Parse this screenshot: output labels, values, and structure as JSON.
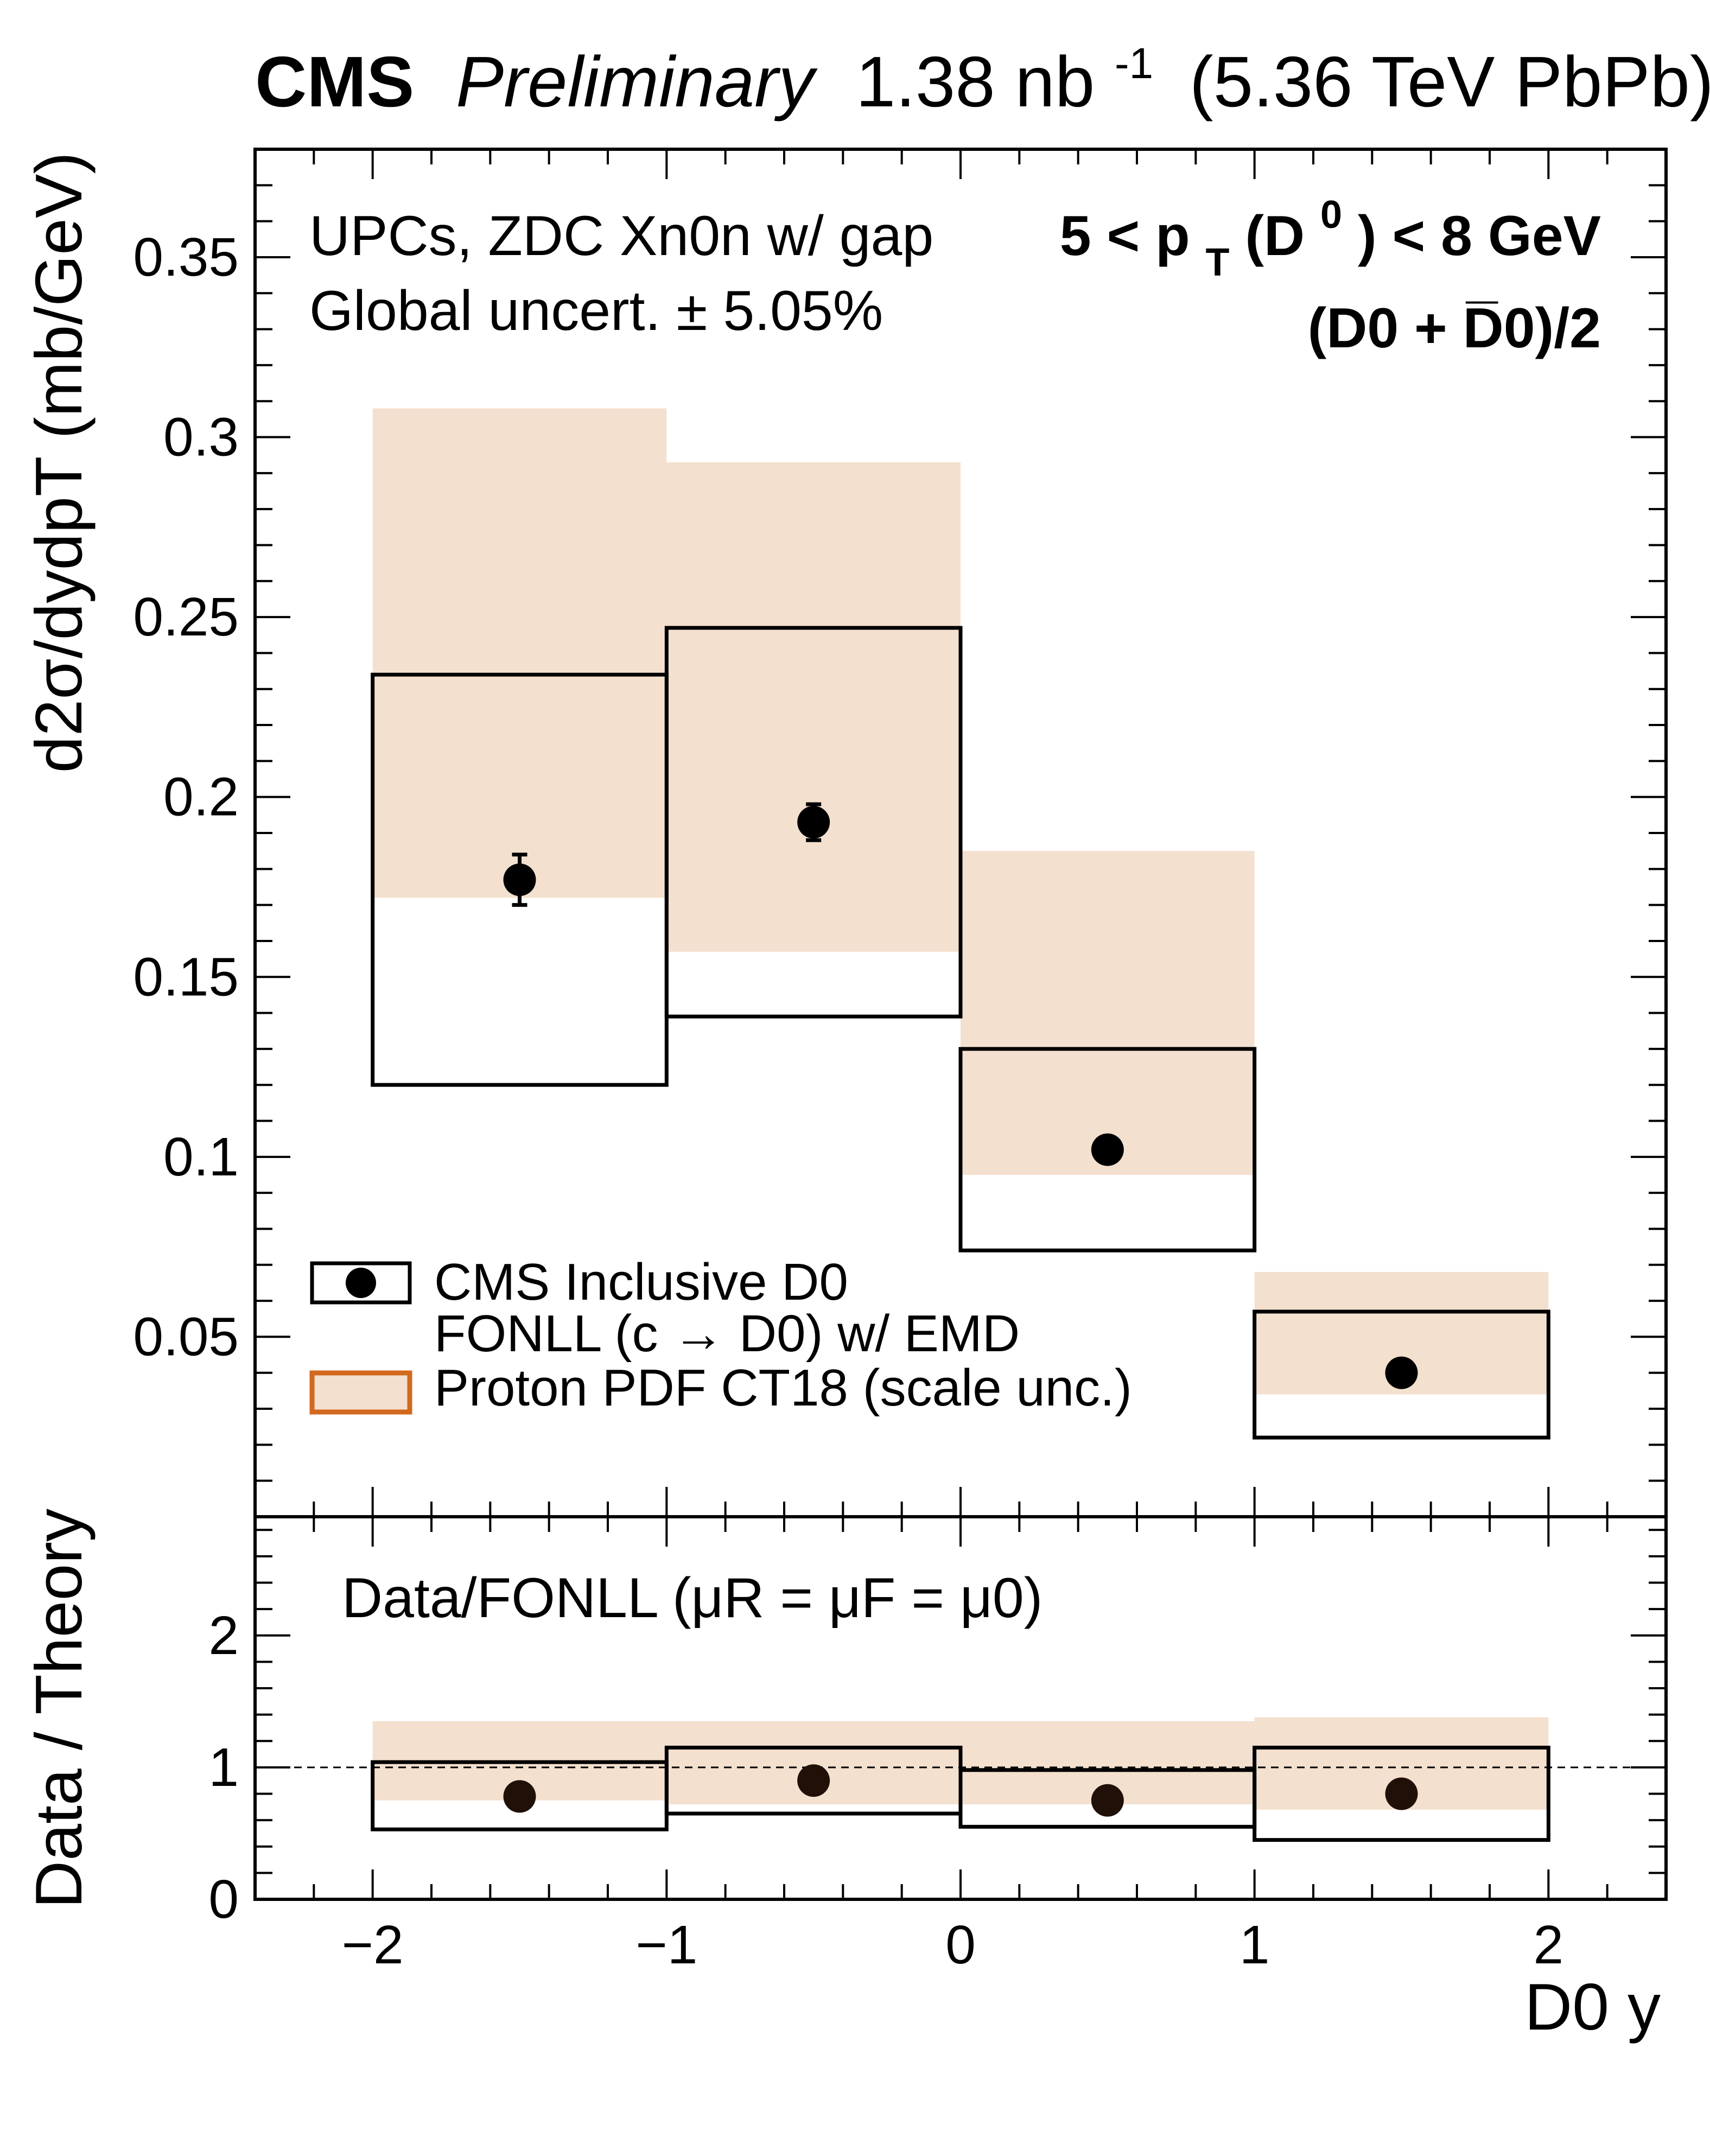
{
  "header": {
    "experiment": "CMS",
    "status": "Preliminary",
    "luminosity": "1.38 nb",
    "lumi_exponent": "-1",
    "energy": "(5.36 TeV PbPb)"
  },
  "annotations": {
    "selection": "UPCs, ZDC Xn0n w/ gap",
    "global_uncert": "Global uncert. ± 5.05%",
    "pt_range_prefix": "5 < p",
    "pt_sub": "T",
    "pt_range_mid": "(D",
    "pt_sup": "0",
    "pt_range_suffix": ") < 8 GeV",
    "average": "(D0 + D̅0)/2",
    "ratio_label": "Data/FONLL (μR = μF = μ0)"
  },
  "legend": {
    "data": "CMS Inclusive D0",
    "fonll": "FONLL (c → D0) w/ EMD",
    "pdf": "Proton PDF CT18 (scale unc.)"
  },
  "colors": {
    "band": "#f4e0ce",
    "legend_band_edge": "#d2691e",
    "line": "#000000"
  },
  "chart_data": [
    {
      "type": "bar",
      "panel": "main",
      "xlabel": "D0 y",
      "ylabel": "d2σ/dydpT (mb/GeV)",
      "xlim": [
        -2.4,
        2.4
      ],
      "ylim": [
        0,
        0.38
      ],
      "xticks": [
        -2,
        -1,
        0,
        1,
        2
      ],
      "yticks": [
        0.05,
        0.1,
        0.15,
        0.2,
        0.25,
        0.3,
        0.35
      ],
      "ytick_labels": [
        "0.05",
        "0.1",
        "0.15",
        "0.2",
        "0.25",
        "0.3",
        "0.35"
      ],
      "bins": [
        [
          -2,
          -1
        ],
        [
          -1,
          0
        ],
        [
          0,
          1
        ],
        [
          1,
          2
        ]
      ],
      "series": [
        {
          "name": "CMS Inclusive D0",
          "x": [
            -1.5,
            -0.5,
            0.5,
            1.5
          ],
          "y": [
            0.177,
            0.193,
            0.102,
            0.04
          ],
          "yerr": [
            0.007,
            0.005,
            0.002,
            0.001
          ]
        },
        {
          "name": "FONLL (c → D0) w/ EMD",
          "low": [
            0.12,
            0.139,
            0.074,
            0.022
          ],
          "high": [
            0.234,
            0.247,
            0.13,
            0.057
          ]
        },
        {
          "name": "Proton PDF CT18 (scale unc.)",
          "low": [
            0.172,
            0.157,
            0.095,
            0.034
          ],
          "high": [
            0.308,
            0.293,
            0.185,
            0.068
          ]
        }
      ]
    },
    {
      "type": "bar",
      "panel": "ratio",
      "xlabel": "D0 y",
      "ylabel": "Data / Theory",
      "xlim": [
        -2.4,
        2.4
      ],
      "ylim": [
        0,
        2.9
      ],
      "xticks": [
        -2,
        -1,
        0,
        1,
        2
      ],
      "xtick_labels": [
        "−2",
        "−1",
        "0",
        "1",
        "2"
      ],
      "yticks": [
        0,
        1,
        2
      ],
      "ytick_labels": [
        "0",
        "1",
        "2"
      ],
      "reference_line": 1,
      "bins": [
        [
          -2,
          -1
        ],
        [
          -1,
          0
        ],
        [
          0,
          1
        ],
        [
          1,
          2
        ]
      ],
      "series": [
        {
          "name": "Data/FONLL",
          "x": [
            -1.5,
            -0.5,
            0.5,
            1.5
          ],
          "y": [
            0.78,
            0.9,
            0.75,
            0.8
          ]
        },
        {
          "name": "FONLL ratio band",
          "low": [
            0.53,
            0.65,
            0.55,
            0.45
          ],
          "high": [
            1.04,
            1.15,
            0.98,
            1.15
          ]
        },
        {
          "name": "PDF ratio band",
          "low": [
            0.75,
            0.72,
            0.72,
            0.68
          ],
          "high": [
            1.35,
            1.35,
            1.35,
            1.38
          ]
        }
      ]
    }
  ]
}
